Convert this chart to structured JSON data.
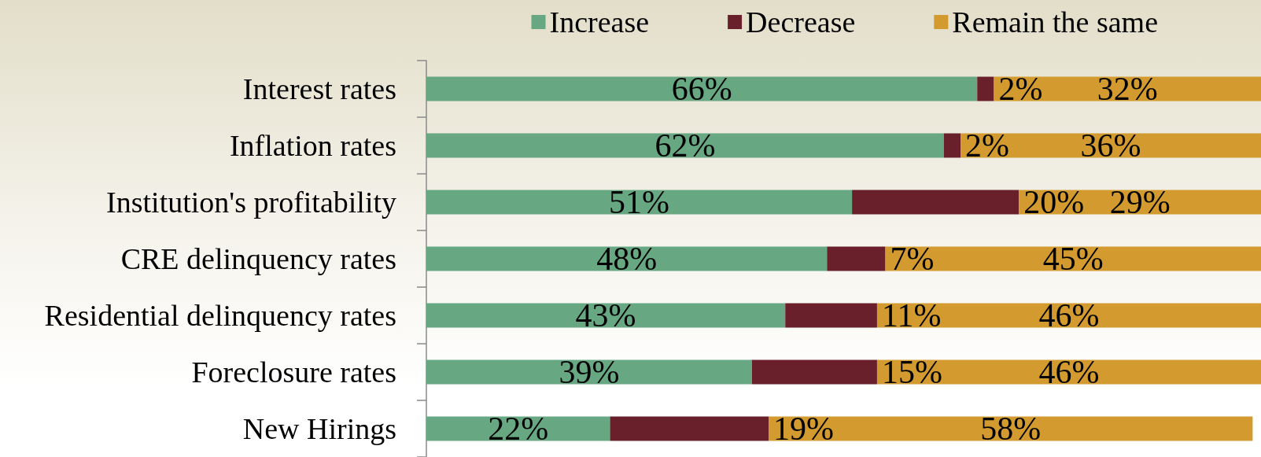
{
  "chart_data": {
    "type": "bar",
    "orientation": "horizontal",
    "stacked": true,
    "legend": "top",
    "tick_labels": "y",
    "xlim": [
      0,
      100
    ],
    "categories": [
      "Interest rates",
      "Inflation rates",
      "Institution's profitability",
      "CRE delinquency rates",
      "Residential delinquency rates",
      "Foreclosure rates",
      "New Hirings"
    ],
    "series": [
      {
        "name": "Increase",
        "color": "#67a882",
        "values": [
          66,
          62,
          51,
          48,
          43,
          39,
          22
        ],
        "value_labels": [
          "66%",
          "62%",
          "51%",
          "48%",
          "43%",
          "39%",
          "22%"
        ]
      },
      {
        "name": "Decrease",
        "color": "#69202b",
        "values": [
          2,
          2,
          20,
          7,
          11,
          15,
          19
        ],
        "value_labels": [
          "2%",
          "2%",
          "20%",
          "7%",
          "11%",
          "15%",
          "19%"
        ]
      },
      {
        "name": "Remain the same",
        "color": "#d29a2f",
        "values": [
          32,
          36,
          29,
          45,
          46,
          46,
          58
        ],
        "value_labels": [
          "32%",
          "36%",
          "29%",
          "45%",
          "46%",
          "46%",
          "58%"
        ]
      }
    ]
  }
}
